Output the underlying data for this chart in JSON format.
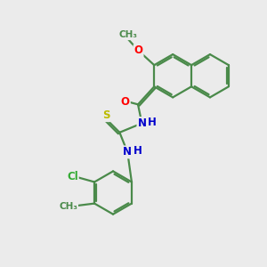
{
  "bg_color": "#ebebeb",
  "bond_color": "#4a8a4a",
  "atom_colors": {
    "O": "#ff0000",
    "N": "#0000cc",
    "S": "#bbbb00",
    "Cl": "#33aa33",
    "C": "#4a8a4a",
    "H": "#0000cc"
  },
  "font_size": 8.5,
  "bond_width": 1.6,
  "dbo": 0.07
}
